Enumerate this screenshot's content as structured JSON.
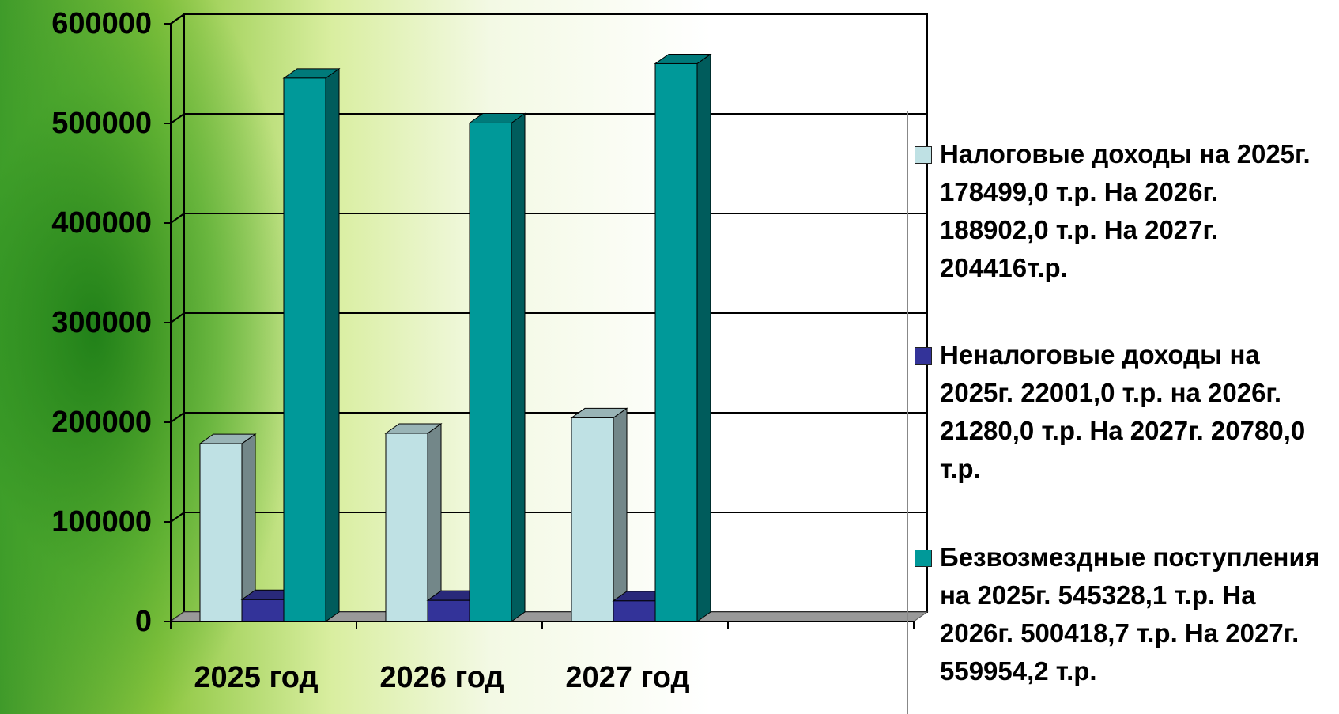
{
  "chart_data": {
    "type": "bar3d",
    "categories": [
      "2025 год",
      "2026 год",
      "2027 год"
    ],
    "series": [
      {
        "name": "Налоговые доходы на 2025г. 178499,0 т.р. На 2026г. 188902,0 т.р. На 2027г. 204416т.р.",
        "color": "#bfe1e4",
        "values": [
          178499,
          188902,
          204416
        ]
      },
      {
        "name": "Неналоговые доходы на 2025г. 22001,0 т.р. на 2026г. 21280,0 т.р. На 2027г. 20780,0 т.р.",
        "color": "#333399",
        "values": [
          22001,
          21280,
          20780
        ]
      },
      {
        "name": "Безвозмездные поступления на 2025г. 545328,1 т.р. На 2026г. 500418,7 т.р. На 2027г. 559954,2 т.р.",
        "color": "#009999",
        "values": [
          545328.1,
          500418.7,
          559954.2
        ]
      }
    ],
    "ylim": [
      0,
      600000
    ],
    "yticks": [
      0,
      100000,
      200000,
      300000,
      400000,
      500000,
      600000
    ],
    "grid": true,
    "legend": "right"
  }
}
